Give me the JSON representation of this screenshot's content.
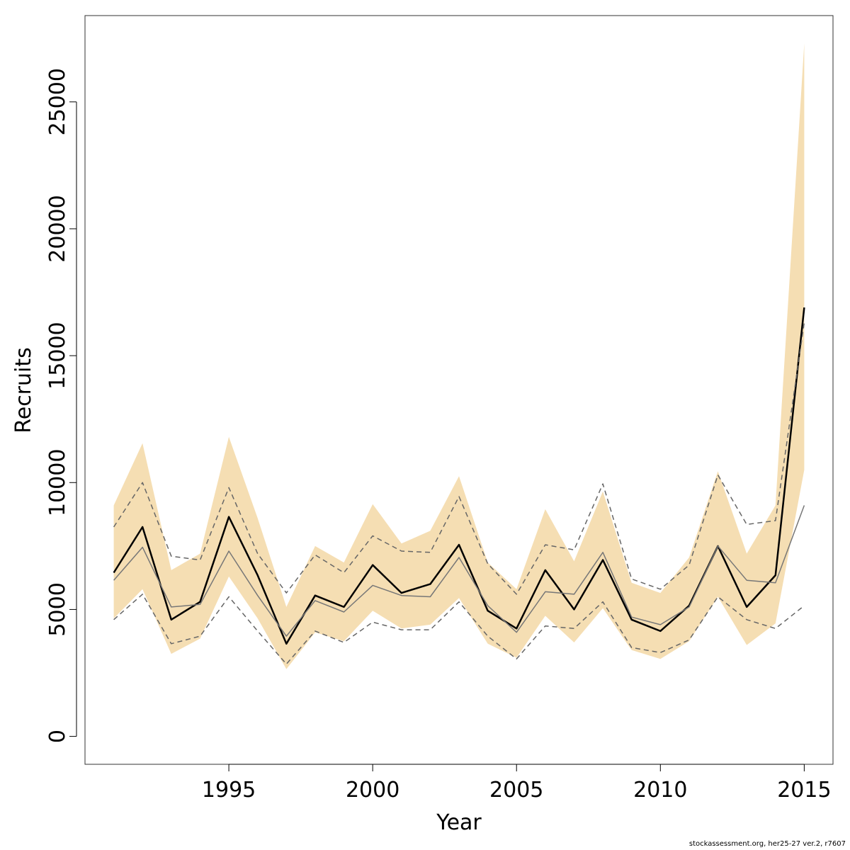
{
  "chart_data": {
    "type": "line",
    "title": "",
    "xlabel": "Year",
    "ylabel": "Recruits",
    "xlim": [
      1990,
      2016
    ],
    "ylim": [
      -1100,
      28400
    ],
    "x_ticks": [
      1995,
      2000,
      2005,
      2010,
      2015
    ],
    "y_ticks": [
      0,
      5000,
      10000,
      15000,
      20000,
      25000
    ],
    "grid": false,
    "x": [
      1991,
      1992,
      1993,
      1994,
      1995,
      1996,
      1997,
      1998,
      1999,
      2000,
      2001,
      2002,
      2003,
      2004,
      2005,
      2006,
      2007,
      2008,
      2009,
      2010,
      2011,
      2012,
      2013,
      2014,
      2015
    ],
    "band": {
      "upper": [
        9100,
        11550,
        6550,
        7200,
        11800,
        8600,
        5100,
        7500,
        6850,
        9150,
        7600,
        8100,
        10250,
        6850,
        5800,
        8950,
        6900,
        9650,
        6050,
        5650,
        7050,
        10450,
        7200,
        9100,
        27300
      ],
      "lower": [
        4650,
        5800,
        3250,
        3850,
        6300,
        4650,
        2650,
        4100,
        3750,
        4950,
        4250,
        4400,
        5450,
        3650,
        3100,
        4750,
        3700,
        5050,
        3400,
        3050,
        3750,
        5500,
        3600,
        4450,
        10500
      ],
      "color": "#f5deb3"
    },
    "series": [
      {
        "values": [
          6450,
          8250,
          4600,
          5300,
          8650,
          6350,
          3650,
          5550,
          5100,
          6750,
          5650,
          6000,
          7550,
          4950,
          4250,
          6550,
          5000,
          6950,
          4600,
          4150,
          5150,
          7500,
          5100,
          6350,
          16900
        ],
        "color": "#000000",
        "style": "solid"
      },
      {
        "values": [
          6150,
          7450,
          5100,
          5200,
          7300,
          5550,
          3950,
          5350,
          4900,
          5950,
          5550,
          5500,
          7050,
          5150,
          4100,
          5700,
          5600,
          7250,
          4700,
          4400,
          5100,
          7500,
          6150,
          6050,
          9100
        ],
        "color": "#777777",
        "style": "solid"
      },
      {
        "values": [
          8250,
          10000,
          7100,
          6950,
          9800,
          7200,
          5650,
          7150,
          6450,
          7900,
          7300,
          7250,
          9450,
          6800,
          5600,
          7550,
          7350,
          9950,
          6200,
          5800,
          6750,
          10300,
          8350,
          8500,
          16300
        ],
        "color": "#666666",
        "style": "dashed"
      },
      {
        "values": [
          4600,
          5600,
          3650,
          3950,
          5500,
          4150,
          2850,
          4150,
          3700,
          4500,
          4200,
          4200,
          5300,
          3950,
          3050,
          4350,
          4250,
          5300,
          3500,
          3300,
          3800,
          5500,
          4600,
          4250,
          5150
        ],
        "color": "#666666",
        "style": "dashed"
      }
    ]
  },
  "footnote": "stockassessment.org, her25-27  ver.2, r7607"
}
